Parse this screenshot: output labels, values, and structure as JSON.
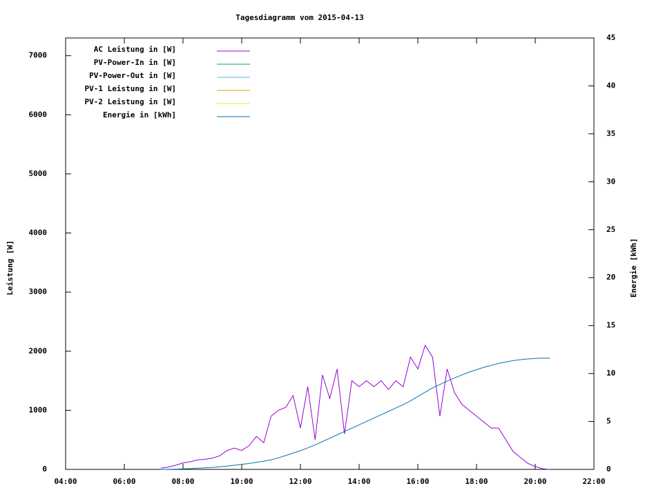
{
  "chart_data": {
    "type": "line",
    "title": "Tagesdiagramm vom 2015-04-13",
    "ylabel": "Leistung [W]",
    "y2label": "Energie [kWh]",
    "xlim": [
      4,
      22
    ],
    "xticks": [
      {
        "value": 4,
        "label": "04:00"
      },
      {
        "value": 6,
        "label": "06:00"
      },
      {
        "value": 8,
        "label": "08:00"
      },
      {
        "value": 10,
        "label": "10:00"
      },
      {
        "value": 12,
        "label": "12:00"
      },
      {
        "value": 14,
        "label": "14:00"
      },
      {
        "value": 16,
        "label": "16:00"
      },
      {
        "value": 18,
        "label": "18:00"
      },
      {
        "value": 20,
        "label": "20:00"
      },
      {
        "value": 22,
        "label": "22:00"
      }
    ],
    "ylim": [
      0,
      7300
    ],
    "yticks": [
      0,
      1000,
      2000,
      3000,
      4000,
      5000,
      6000,
      7000
    ],
    "y2lim": [
      0,
      45
    ],
    "y2ticks": [
      0,
      5,
      10,
      15,
      20,
      25,
      30,
      35,
      40,
      45
    ],
    "legend": "top-left",
    "x": [
      7.25,
      7.5,
      7.75,
      8,
      8.25,
      8.5,
      8.75,
      9,
      9.25,
      9.5,
      9.75,
      10,
      10.25,
      10.5,
      10.75,
      11,
      11.25,
      11.5,
      11.75,
      12,
      12.25,
      12.5,
      12.75,
      13,
      13.25,
      13.5,
      13.75,
      14,
      14.25,
      14.5,
      14.75,
      15,
      15.25,
      15.5,
      15.75,
      16,
      16.25,
      16.5,
      16.75,
      17,
      17.25,
      17.5,
      17.75,
      18,
      18.25,
      18.5,
      18.75,
      19,
      19.25,
      19.5,
      19.75,
      20,
      20.25,
      20.5
    ],
    "series": [
      {
        "name": "AC Leistung in [W]",
        "color": "#9400d3",
        "values": [
          20,
          40,
          70,
          110,
          130,
          160,
          170,
          190,
          230,
          320,
          360,
          320,
          400,
          560,
          450,
          900,
          1000,
          1050,
          1250,
          700,
          1400,
          500,
          1600,
          1200,
          1700,
          600,
          1500,
          1400,
          1500,
          1400,
          1500,
          1350,
          1500,
          1400,
          1900,
          1700,
          2100,
          1900,
          900,
          1700,
          1300,
          1100,
          1000,
          900,
          800,
          700,
          700,
          500,
          300,
          200,
          100,
          50,
          10,
          0
        ]
      },
      {
        "name": "PV-Power-In in [W]",
        "color": "#009e73"
      },
      {
        "name": "PV-Power-Out in [W]",
        "color": "#56b4e9"
      },
      {
        "name": "PV-1 Leistung in [W]",
        "color": "#e69f00"
      },
      {
        "name": "PV-2 Leistung in [W]",
        "color": "#f0e442"
      },
      {
        "name": "Energie in [kWh]",
        "color": "#0072b2",
        "axis": "y2",
        "values": [
          0,
          0.01,
          0.03,
          0.05,
          0.08,
          0.12,
          0.16,
          0.21,
          0.27,
          0.34,
          0.43,
          0.52,
          0.62,
          0.74,
          0.86,
          1.0,
          1.2,
          1.45,
          1.7,
          1.95,
          2.25,
          2.55,
          2.9,
          3.25,
          3.6,
          3.95,
          4.3,
          4.65,
          5.0,
          5.35,
          5.7,
          6.05,
          6.4,
          6.75,
          7.15,
          7.6,
          8.05,
          8.5,
          8.85,
          9.2,
          9.55,
          9.85,
          10.15,
          10.4,
          10.65,
          10.85,
          11.05,
          11.2,
          11.35,
          11.45,
          11.52,
          11.57,
          11.6,
          11.6
        ]
      }
    ]
  }
}
